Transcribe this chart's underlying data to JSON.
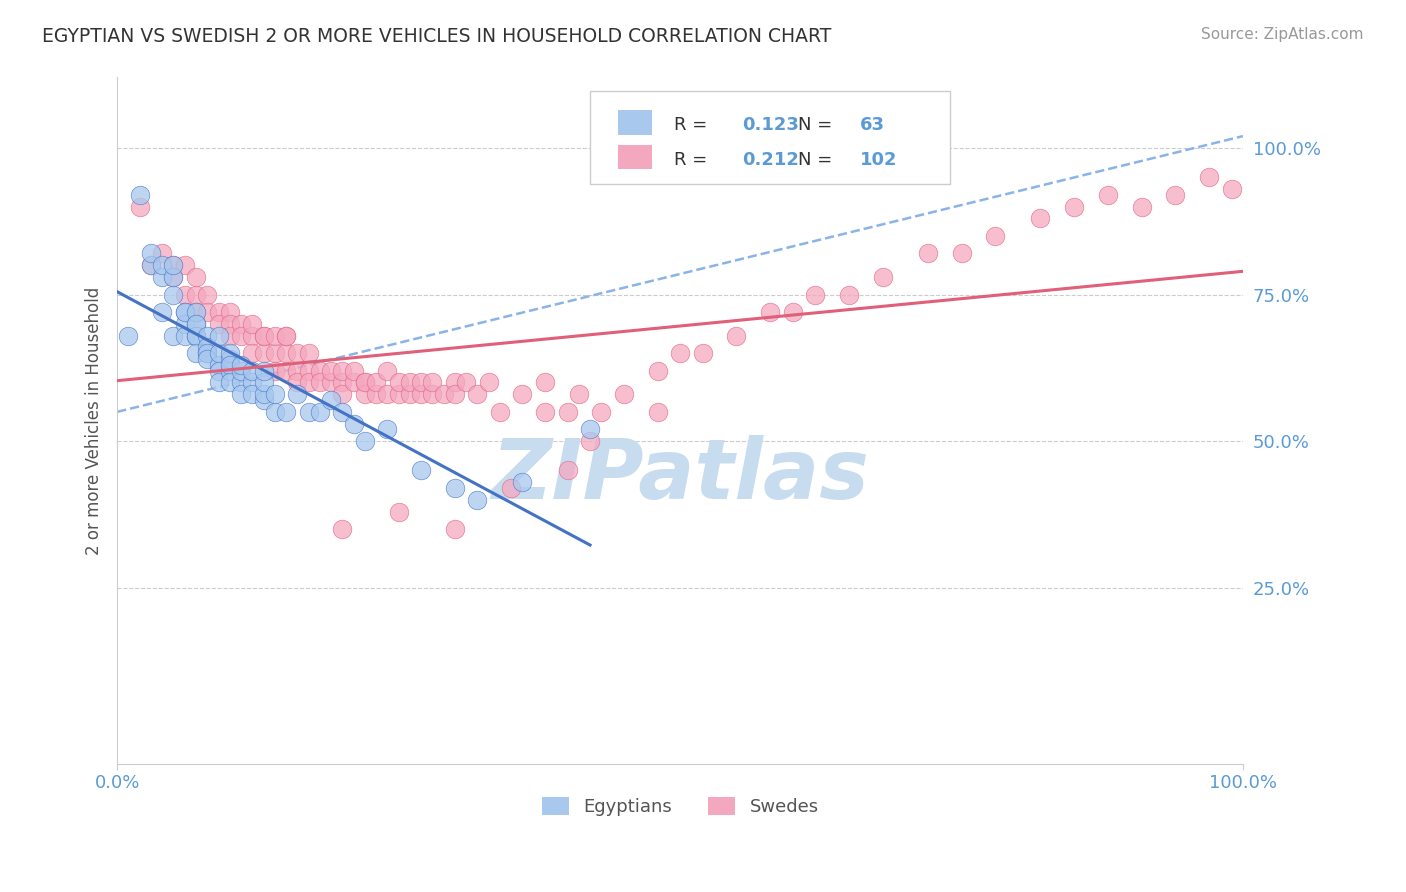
{
  "title": "EGYPTIAN VS SWEDISH 2 OR MORE VEHICLES IN HOUSEHOLD CORRELATION CHART",
  "source": "Source: ZipAtlas.com",
  "ylabel": "2 or more Vehicles in Household",
  "xlim": [
    0,
    1
  ],
  "ylim": [
    -0.05,
    1.12
  ],
  "ytick_labels": [
    "25.0%",
    "50.0%",
    "75.0%",
    "100.0%"
  ],
  "ytick_values": [
    0.25,
    0.5,
    0.75,
    1.0
  ],
  "legend_R1": "0.123",
  "legend_N1": "63",
  "legend_R2": "0.212",
  "legend_N2": "102",
  "color_egyptian": "#A8C8EE",
  "color_swedish": "#F4A8C0",
  "color_line_egyptian": "#4472C4",
  "color_line_swedish": "#E0607A",
  "color_dashed": "#8AB4E8",
  "watermark_color": "#C8DCF0",
  "eg_x": [
    0.01,
    0.02,
    0.03,
    0.03,
    0.04,
    0.04,
    0.04,
    0.05,
    0.05,
    0.05,
    0.05,
    0.06,
    0.06,
    0.06,
    0.06,
    0.07,
    0.07,
    0.07,
    0.07,
    0.07,
    0.07,
    0.08,
    0.08,
    0.08,
    0.08,
    0.08,
    0.09,
    0.09,
    0.09,
    0.09,
    0.09,
    0.1,
    0.1,
    0.1,
    0.1,
    0.1,
    0.11,
    0.11,
    0.11,
    0.11,
    0.12,
    0.12,
    0.12,
    0.13,
    0.13,
    0.13,
    0.13,
    0.14,
    0.14,
    0.15,
    0.16,
    0.17,
    0.18,
    0.19,
    0.2,
    0.21,
    0.22,
    0.24,
    0.27,
    0.3,
    0.32,
    0.36,
    0.42
  ],
  "eg_y": [
    0.68,
    0.92,
    0.8,
    0.82,
    0.78,
    0.8,
    0.72,
    0.75,
    0.78,
    0.8,
    0.68,
    0.72,
    0.7,
    0.68,
    0.72,
    0.7,
    0.68,
    0.72,
    0.68,
    0.65,
    0.7,
    0.65,
    0.68,
    0.66,
    0.65,
    0.64,
    0.63,
    0.65,
    0.68,
    0.62,
    0.6,
    0.62,
    0.64,
    0.65,
    0.63,
    0.6,
    0.6,
    0.62,
    0.63,
    0.58,
    0.6,
    0.58,
    0.62,
    0.57,
    0.58,
    0.6,
    0.62,
    0.55,
    0.58,
    0.55,
    0.58,
    0.55,
    0.55,
    0.57,
    0.55,
    0.53,
    0.5,
    0.52,
    0.45,
    0.42,
    0.4,
    0.43,
    0.52
  ],
  "sw_x": [
    0.02,
    0.03,
    0.04,
    0.05,
    0.05,
    0.06,
    0.06,
    0.07,
    0.07,
    0.07,
    0.08,
    0.08,
    0.09,
    0.09,
    0.1,
    0.1,
    0.1,
    0.11,
    0.11,
    0.12,
    0.12,
    0.12,
    0.13,
    0.13,
    0.13,
    0.14,
    0.14,
    0.14,
    0.15,
    0.15,
    0.15,
    0.15,
    0.16,
    0.16,
    0.16,
    0.17,
    0.17,
    0.17,
    0.18,
    0.18,
    0.19,
    0.19,
    0.2,
    0.2,
    0.2,
    0.21,
    0.21,
    0.22,
    0.22,
    0.22,
    0.23,
    0.23,
    0.24,
    0.24,
    0.25,
    0.25,
    0.26,
    0.26,
    0.27,
    0.27,
    0.28,
    0.28,
    0.29,
    0.3,
    0.3,
    0.31,
    0.32,
    0.33,
    0.34,
    0.36,
    0.38,
    0.38,
    0.4,
    0.41,
    0.43,
    0.45,
    0.48,
    0.5,
    0.52,
    0.55,
    0.58,
    0.6,
    0.62,
    0.65,
    0.68,
    0.72,
    0.75,
    0.78,
    0.82,
    0.85,
    0.88,
    0.91,
    0.94,
    0.97,
    0.4,
    0.3,
    0.35,
    0.42,
    0.48,
    0.2,
    0.25,
    0.99
  ],
  "sw_y": [
    0.9,
    0.8,
    0.82,
    0.8,
    0.78,
    0.8,
    0.75,
    0.75,
    0.78,
    0.72,
    0.75,
    0.72,
    0.72,
    0.7,
    0.72,
    0.7,
    0.68,
    0.7,
    0.68,
    0.68,
    0.7,
    0.65,
    0.68,
    0.65,
    0.68,
    0.65,
    0.68,
    0.62,
    0.65,
    0.68,
    0.62,
    0.68,
    0.65,
    0.62,
    0.6,
    0.62,
    0.65,
    0.6,
    0.62,
    0.6,
    0.6,
    0.62,
    0.6,
    0.62,
    0.58,
    0.6,
    0.62,
    0.6,
    0.58,
    0.6,
    0.58,
    0.6,
    0.58,
    0.62,
    0.58,
    0.6,
    0.58,
    0.6,
    0.58,
    0.6,
    0.58,
    0.6,
    0.58,
    0.6,
    0.58,
    0.6,
    0.58,
    0.6,
    0.55,
    0.58,
    0.6,
    0.55,
    0.55,
    0.58,
    0.55,
    0.58,
    0.62,
    0.65,
    0.65,
    0.68,
    0.72,
    0.72,
    0.75,
    0.75,
    0.78,
    0.82,
    0.82,
    0.85,
    0.88,
    0.9,
    0.92,
    0.9,
    0.92,
    0.95,
    0.45,
    0.35,
    0.42,
    0.5,
    0.55,
    0.35,
    0.38,
    0.93
  ]
}
